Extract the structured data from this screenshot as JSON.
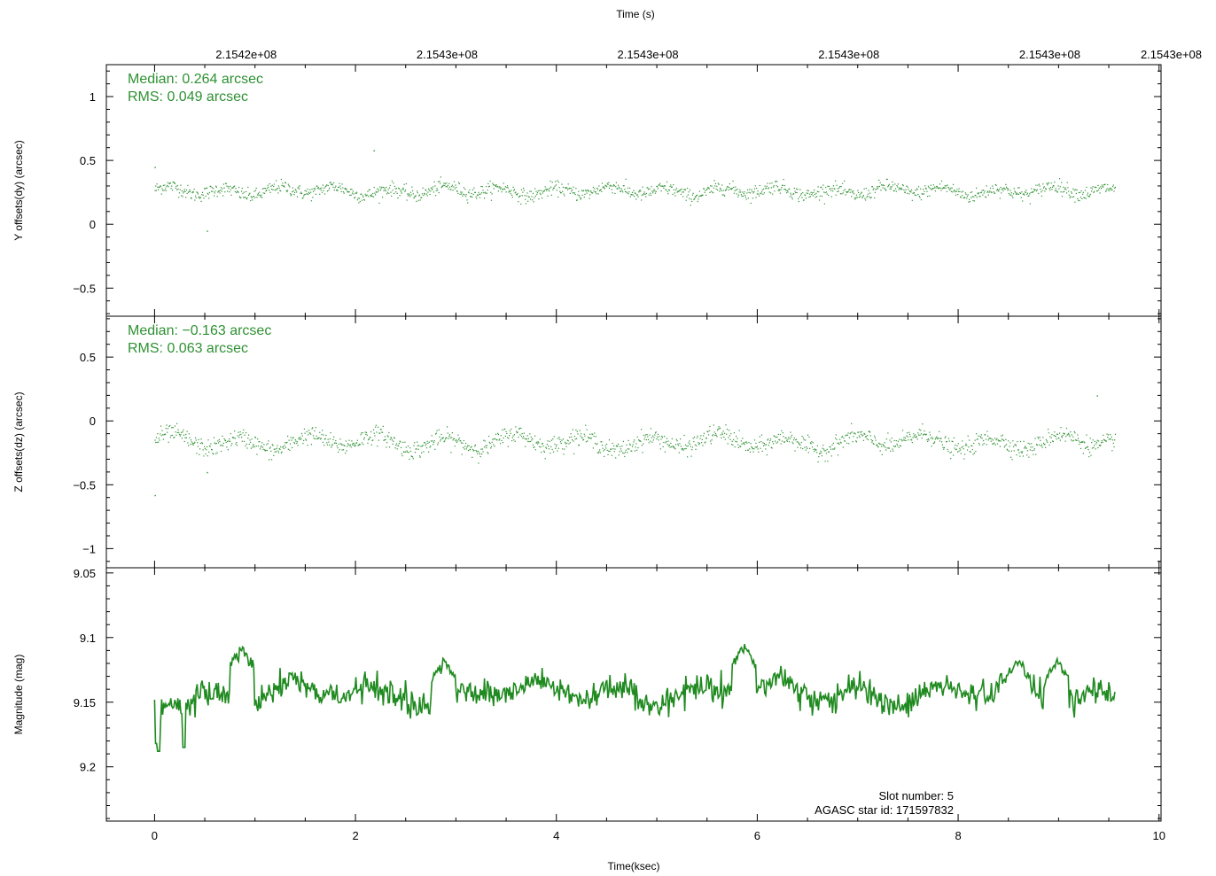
{
  "chart_data": [
    {
      "type": "scatter",
      "name": "panel-y-offsets",
      "ylabel": "Y offsets(dy) (arcsec)",
      "ylim": [
        -0.72,
        1.25
      ],
      "yticks": [
        -0.5,
        0,
        0.5,
        1
      ],
      "ytick_labels": [
        "−0.5",
        "0",
        "0.5",
        "1"
      ],
      "xlim": [
        -0.48,
        10.02
      ],
      "top_axis": {
        "label": "Time (s)",
        "tick_labels": [
          "2.1542e+08",
          "2.1543e+08",
          "2.1543e+08",
          "2.1543e+08",
          "2.1543e+08",
          "2.1543e+08"
        ]
      },
      "annotations": [
        "Median: 0.264 arcsec",
        "RMS: 0.049 arcsec"
      ],
      "color": "#2e9132",
      "series": {
        "x_range": [
          0,
          9.56
        ],
        "y_median": 0.264,
        "y_rms": 0.049,
        "wave_amplitude": 0.03,
        "wave_period": 0.55,
        "n_points": 1500,
        "outliers": [
          [
            0.0,
            0.45
          ],
          [
            0.52,
            -0.05
          ],
          [
            2.18,
            0.58
          ]
        ]
      }
    },
    {
      "type": "scatter",
      "name": "panel-z-offsets",
      "ylabel": "Z offsets(dz) (arcsec)",
      "ylim": [
        -1.15,
        0.82
      ],
      "yticks": [
        -1,
        -0.5,
        0,
        0.5
      ],
      "ytick_labels": [
        "−1",
        "−0.5",
        "0",
        "0.5"
      ],
      "xlim": [
        -0.48,
        10.02
      ],
      "annotations": [
        "Median: −0.163 arcsec",
        "RMS: 0.063 arcsec"
      ],
      "color": "#2e9132",
      "series": {
        "x_range": [
          0,
          9.56
        ],
        "y_median": -0.163,
        "y_rms": 0.063,
        "wave_amplitude": 0.05,
        "wave_period": 0.68,
        "n_points": 1500,
        "outliers": [
          [
            0.0,
            -0.58
          ],
          [
            0.52,
            -0.4
          ],
          [
            9.38,
            0.2
          ]
        ]
      }
    },
    {
      "type": "line",
      "name": "panel-magnitude",
      "ylabel": "Magnitude (mag)",
      "ylim": [
        9.046,
        9.242
      ],
      "y_inverted": true,
      "yticks": [
        9.05,
        9.1,
        9.15,
        9.2
      ],
      "ytick_labels": [
        "9.05",
        "9.1",
        "9.15",
        "9.2"
      ],
      "xlim": [
        -0.48,
        10.02
      ],
      "xlabel": "Time(ksec)",
      "xticks": [
        0,
        2,
        4,
        6,
        8,
        10
      ],
      "xtick_labels": [
        "0",
        "2",
        "4",
        "6",
        "8",
        "10"
      ],
      "annotations": [
        "Slot number: 5",
        "AGASC star id: 171597832"
      ],
      "color": "#1f8a1f",
      "series": {
        "x_range": [
          0,
          9.56
        ],
        "y_mean": 9.143,
        "y_noise": 0.009,
        "n_points": 950,
        "early_dips": [
          [
            0.02,
            9.182
          ],
          [
            0.04,
            9.188
          ],
          [
            0.29,
            9.185
          ]
        ],
        "peaks": [
          [
            0.87,
            9.104
          ],
          [
            2.88,
            9.115
          ],
          [
            5.87,
            9.104
          ],
          [
            8.6,
            9.115
          ],
          [
            8.98,
            9.115
          ]
        ]
      }
    }
  ]
}
